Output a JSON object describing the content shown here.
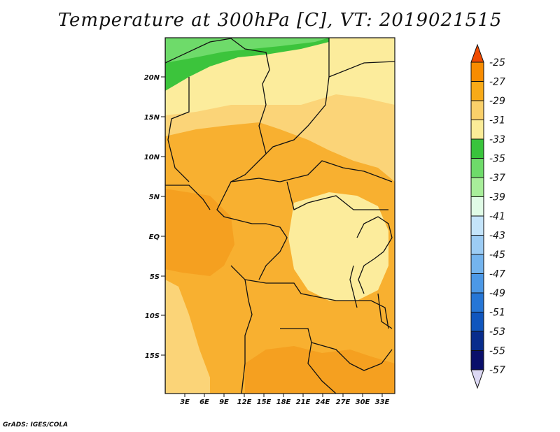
{
  "map": {
    "title": "Temperature at 300hPa [C], VT: 2019021515",
    "credit": "GrADS: IGES/COLA",
    "lat_ticks": [
      "20N",
      "15N",
      "10N",
      "5N",
      "EQ",
      "5S",
      "10S",
      "15S"
    ],
    "lon_ticks": [
      "3E",
      "6E",
      "9E",
      "12E",
      "15E",
      "18E",
      "21E",
      "24E",
      "27E",
      "30E",
      "33E"
    ]
  },
  "colorbar": {
    "levels": [
      "-25",
      "-27",
      "-29",
      "-31",
      "-33",
      "-35",
      "-37",
      "-39",
      "-41",
      "-43",
      "-45",
      "-47",
      "-49",
      "-51",
      "-53",
      "-55",
      "-57"
    ],
    "colors": [
      "#f04a00",
      "#f88c00",
      "#f8aa18",
      "#fad06a",
      "#fbec98",
      "#39c43c",
      "#6edb6a",
      "#a8ee9a",
      "#e0fbe6",
      "#c4e4fa",
      "#9cccf4",
      "#74b4ee",
      "#4c98e6",
      "#2676d6",
      "#1056be",
      "#082c8c",
      "#0a0f6a"
    ],
    "triangle_bottom_color": "#dcd8f4"
  }
}
